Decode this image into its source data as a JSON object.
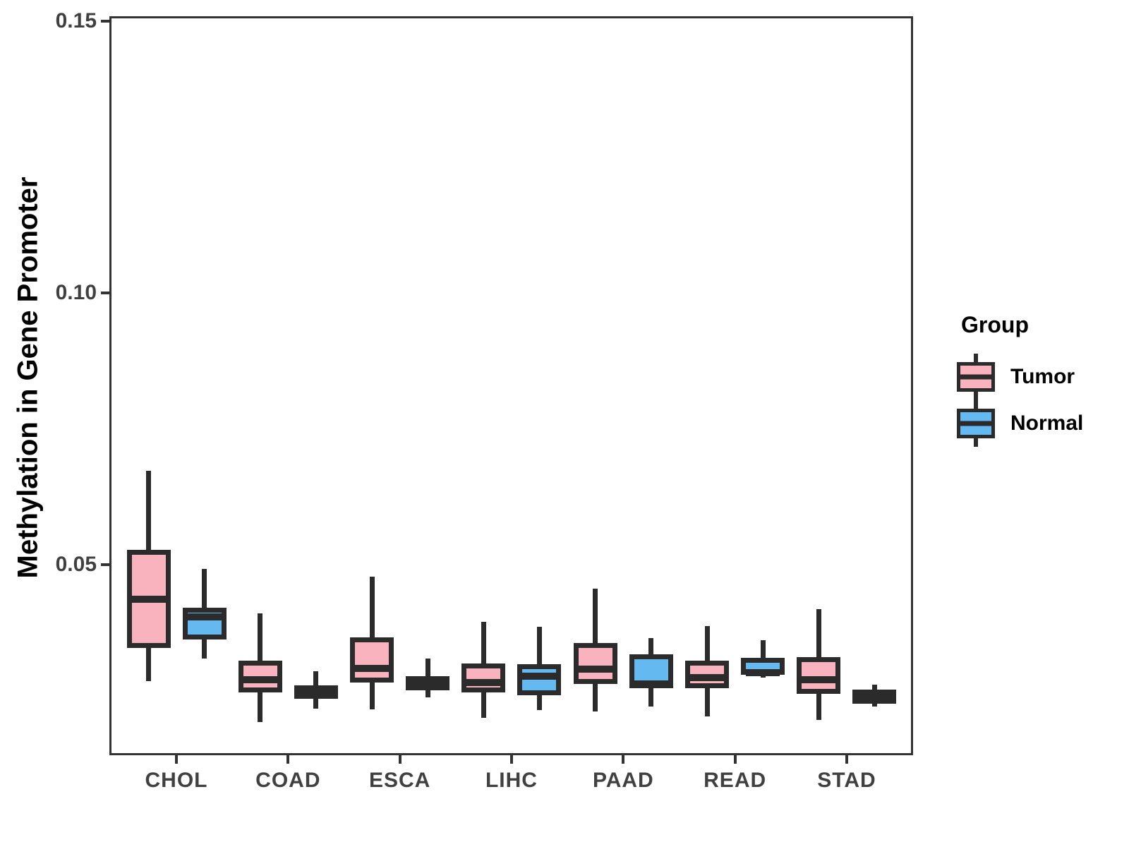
{
  "figure": {
    "ylabel": "Methylation in Gene Promoter"
  },
  "chart_data": {
    "type": "grouped_boxplot",
    "title": "",
    "xlabel": "",
    "ylabel": "Methylation in Gene Promoter",
    "categories": [
      "CHOL",
      "COAD",
      "ESCA",
      "LIHC",
      "PAAD",
      "READ",
      "STAD"
    ],
    "ylim": [
      0.0149,
      0.1509
    ],
    "yticks": [
      {
        "value": 0.05,
        "label": "0.05"
      },
      {
        "value": 0.1,
        "label": "0.10"
      },
      {
        "value": 0.15,
        "label": "0.15"
      }
    ],
    "grid": "off",
    "legend": {
      "title": "Group",
      "position": "right"
    },
    "colors": {
      "tumor_fill": "#F9B3BE",
      "normal_fill": "#64B9F0",
      "stroke": "#2B2B2B"
    },
    "series": [
      {
        "name": "Tumor",
        "fill": "#F9B3BE",
        "boxes": [
          {
            "category": "CHOL",
            "low": 0.0285,
            "q1": 0.0346,
            "median": 0.0436,
            "q3": 0.0527,
            "high": 0.0673
          },
          {
            "category": "COAD",
            "low": 0.021,
            "q1": 0.0264,
            "median": 0.0288,
            "q3": 0.0323,
            "high": 0.041
          },
          {
            "category": "ESCA",
            "low": 0.0234,
            "q1": 0.0283,
            "median": 0.0309,
            "q3": 0.0366,
            "high": 0.0477
          },
          {
            "category": "LIHC",
            "low": 0.0218,
            "q1": 0.0264,
            "median": 0.0283,
            "q3": 0.0318,
            "high": 0.0394
          },
          {
            "category": "PAAD",
            "low": 0.0229,
            "q1": 0.028,
            "median": 0.0307,
            "q3": 0.0355,
            "high": 0.0455
          },
          {
            "category": "READ",
            "low": 0.0221,
            "q1": 0.0273,
            "median": 0.0292,
            "q3": 0.0323,
            "high": 0.0387
          },
          {
            "category": "STAD",
            "low": 0.0214,
            "q1": 0.0262,
            "median": 0.0288,
            "q3": 0.0329,
            "high": 0.0418
          }
        ]
      },
      {
        "name": "Normal",
        "fill": "#64B9F0",
        "boxes": [
          {
            "category": "CHOL",
            "low": 0.0327,
            "q1": 0.0362,
            "median": 0.0403,
            "q3": 0.0421,
            "high": 0.0492
          },
          {
            "category": "COAD",
            "low": 0.0235,
            "q1": 0.0253,
            "median": 0.0265,
            "q3": 0.0277,
            "high": 0.0303
          },
          {
            "category": "ESCA",
            "low": 0.0256,
            "q1": 0.0268,
            "median": 0.0284,
            "q3": 0.0295,
            "high": 0.0327
          },
          {
            "category": "LIHC",
            "low": 0.0232,
            "q1": 0.0259,
            "median": 0.0294,
            "q3": 0.0316,
            "high": 0.0386
          },
          {
            "category": "PAAD",
            "low": 0.0238,
            "q1": 0.0272,
            "median": 0.028,
            "q3": 0.0335,
            "high": 0.0364
          },
          {
            "category": "READ",
            "low": 0.0292,
            "q1": 0.0297,
            "median": 0.0301,
            "q3": 0.0328,
            "high": 0.0361
          },
          {
            "category": "STAD",
            "low": 0.0238,
            "q1": 0.0244,
            "median": 0.0257,
            "q3": 0.027,
            "high": 0.0279
          }
        ]
      }
    ]
  }
}
